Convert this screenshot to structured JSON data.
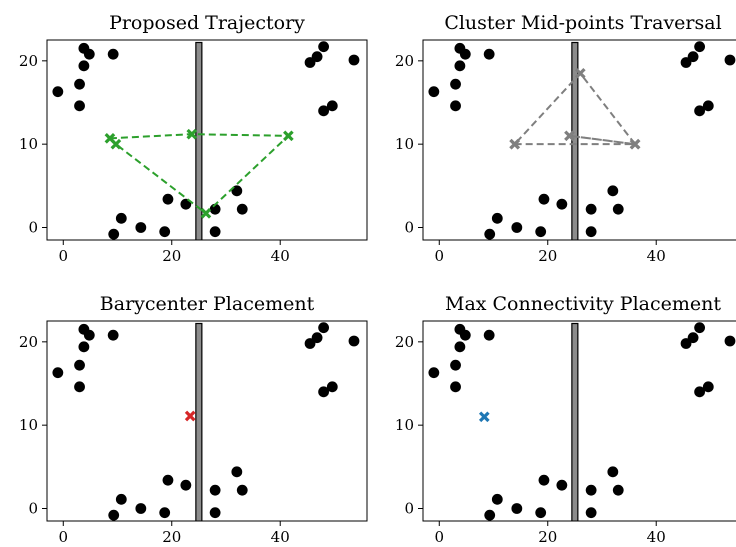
{
  "chart_data": [
    {
      "type": "scatter",
      "title": "Proposed Trajectory",
      "xticks": [
        0,
        20,
        40
      ],
      "yticks": [
        0,
        10,
        20
      ],
      "xlim": [
        -3,
        56
      ],
      "ylim": [
        -1.5,
        22.5
      ],
      "points": [
        [
          -1,
          16.3
        ],
        [
          3,
          17.2
        ],
        [
          3.8,
          19.4
        ],
        [
          3,
          14.6
        ],
        [
          3.8,
          21.5
        ],
        [
          4.8,
          20.8
        ],
        [
          9.2,
          20.8
        ],
        [
          10.7,
          1.1
        ],
        [
          9.3,
          -0.8
        ],
        [
          14.3,
          0
        ],
        [
          18.7,
          -0.5
        ],
        [
          19.3,
          3.4
        ],
        [
          22.6,
          2.8
        ],
        [
          28,
          2.2
        ],
        [
          28,
          -0.5
        ],
        [
          32,
          4.4
        ],
        [
          33,
          2.2
        ],
        [
          45.5,
          19.8
        ],
        [
          46.8,
          20.5
        ],
        [
          48,
          21.7
        ],
        [
          48,
          14
        ],
        [
          49.6,
          14.6
        ],
        [
          53.6,
          20.1
        ]
      ],
      "wall": {
        "x": 25,
        "y0": -1.8,
        "y1": 22.2
      },
      "path": {
        "color": "#2ca02c",
        "style": "dashed",
        "markers": "x",
        "points": [
          [
            8.6,
            10.7
          ],
          [
            23.7,
            11.2
          ],
          [
            41.5,
            11
          ],
          [
            26.3,
            1.7
          ],
          [
            9.7,
            10
          ]
        ]
      }
    },
    {
      "type": "scatter",
      "title": "Cluster Mid-points Traversal",
      "xticks": [
        0,
        20,
        40
      ],
      "yticks": [
        0,
        10,
        20
      ],
      "xlim": [
        -3,
        56
      ],
      "ylim": [
        -1.5,
        22.5
      ],
      "points": [
        [
          -1,
          16.3
        ],
        [
          3,
          17.2
        ],
        [
          3.8,
          19.4
        ],
        [
          3,
          14.6
        ],
        [
          3.8,
          21.5
        ],
        [
          4.8,
          20.8
        ],
        [
          9.2,
          20.8
        ],
        [
          10.7,
          1.1
        ],
        [
          9.3,
          -0.8
        ],
        [
          14.3,
          0
        ],
        [
          18.7,
          -0.5
        ],
        [
          19.3,
          3.4
        ],
        [
          22.6,
          2.8
        ],
        [
          28,
          2.2
        ],
        [
          28,
          -0.5
        ],
        [
          32,
          4.4
        ],
        [
          33,
          2.2
        ],
        [
          45.5,
          19.8
        ],
        [
          46.8,
          20.5
        ],
        [
          48,
          21.7
        ],
        [
          48,
          14
        ],
        [
          49.6,
          14.6
        ],
        [
          53.6,
          20.1
        ]
      ],
      "wall": {
        "x": 25,
        "y0": -1.8,
        "y1": 22.2
      },
      "path": {
        "color": "#7f7f7f",
        "style": "dashed",
        "markers": "x",
        "points": [
          [
            13.9,
            10
          ],
          [
            36.1,
            10
          ],
          [
            24,
            11
          ],
          [
            36.1,
            10
          ],
          [
            26,
            18.5
          ],
          [
            13.9,
            10
          ]
        ]
      }
    },
    {
      "type": "scatter",
      "title": "Barycenter Placement",
      "xticks": [
        0,
        20,
        40
      ],
      "yticks": [
        0,
        10,
        20
      ],
      "xlim": [
        -3,
        56
      ],
      "ylim": [
        -1.5,
        22.5
      ],
      "points": [
        [
          -1,
          16.3
        ],
        [
          3,
          17.2
        ],
        [
          3.8,
          19.4
        ],
        [
          3,
          14.6
        ],
        [
          3.8,
          21.5
        ],
        [
          4.8,
          20.8
        ],
        [
          9.2,
          20.8
        ],
        [
          10.7,
          1.1
        ],
        [
          9.3,
          -0.8
        ],
        [
          14.3,
          0
        ],
        [
          18.7,
          -0.5
        ],
        [
          19.3,
          3.4
        ],
        [
          22.6,
          2.8
        ],
        [
          28,
          2.2
        ],
        [
          28,
          -0.5
        ],
        [
          32,
          4.4
        ],
        [
          33,
          2.2
        ],
        [
          45.5,
          19.8
        ],
        [
          46.8,
          20.5
        ],
        [
          48,
          21.7
        ],
        [
          48,
          14
        ],
        [
          49.6,
          14.6
        ],
        [
          53.6,
          20.1
        ]
      ],
      "wall": {
        "x": 25,
        "y0": -1.8,
        "y1": 22.2
      },
      "marker": {
        "color": "#d62728",
        "point": [
          23.4,
          11.1
        ]
      }
    },
    {
      "type": "scatter",
      "title": "Max Connectivity Placement",
      "xticks": [
        0,
        20,
        40
      ],
      "yticks": [
        0,
        10,
        20
      ],
      "xlim": [
        -3,
        56
      ],
      "ylim": [
        -1.5,
        22.5
      ],
      "points": [
        [
          -1,
          16.3
        ],
        [
          3,
          17.2
        ],
        [
          3.8,
          19.4
        ],
        [
          3,
          14.6
        ],
        [
          3.8,
          21.5
        ],
        [
          4.8,
          20.8
        ],
        [
          9.2,
          20.8
        ],
        [
          10.7,
          1.1
        ],
        [
          9.3,
          -0.8
        ],
        [
          14.3,
          0
        ],
        [
          18.7,
          -0.5
        ],
        [
          19.3,
          3.4
        ],
        [
          22.6,
          2.8
        ],
        [
          28,
          2.2
        ],
        [
          28,
          -0.5
        ],
        [
          32,
          4.4
        ],
        [
          33,
          2.2
        ],
        [
          45.5,
          19.8
        ],
        [
          46.8,
          20.5
        ],
        [
          48,
          21.7
        ],
        [
          48,
          14
        ],
        [
          49.6,
          14.6
        ],
        [
          53.6,
          20.1
        ]
      ],
      "wall": {
        "x": 25,
        "y0": -1.8,
        "y1": 22.2
      },
      "marker": {
        "color": "#1f77b4",
        "point": [
          8.3,
          11
        ]
      }
    }
  ]
}
